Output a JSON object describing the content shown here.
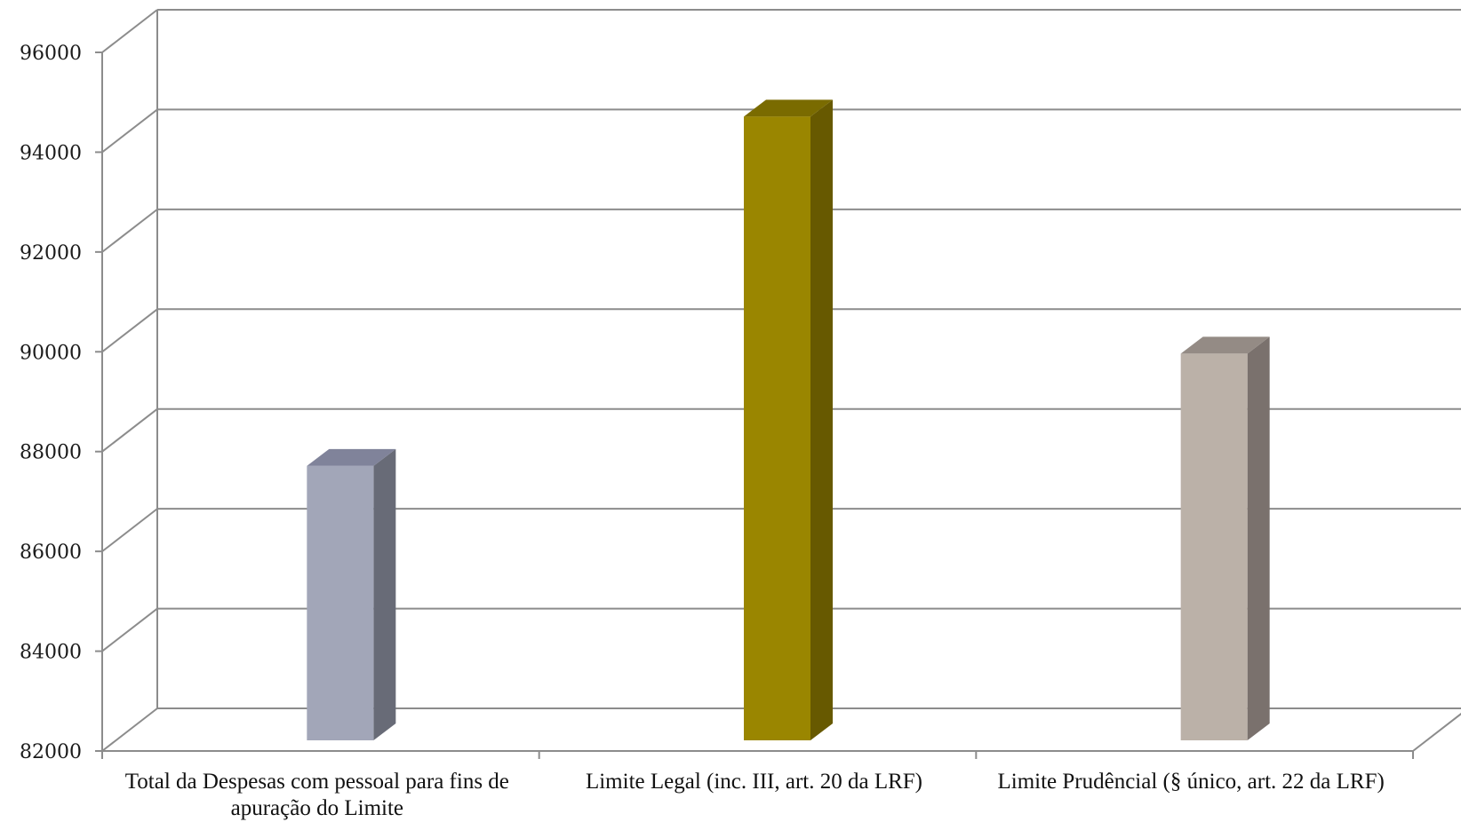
{
  "chart_data": {
    "type": "bar",
    "title": "",
    "xlabel": "",
    "ylabel": "",
    "categories": [
      "Total da Despesas com pessoal para fins de apuração do Limite",
      "Limite Legal (inc. III, art. 20 da LRF)",
      "Limite Prudêncial (§ único, art. 22 da LRF)"
    ],
    "values": [
      87500,
      94500,
      89750
    ],
    "ylim": [
      82000,
      96000
    ],
    "yticks": [
      82000,
      84000,
      86000,
      88000,
      90000,
      92000,
      94000,
      96000
    ],
    "ytick_labels": [
      "82000",
      "84000",
      "86000",
      "88000",
      "90000",
      "92000",
      "94000",
      "96000"
    ],
    "grid": true,
    "legend": "none",
    "three_d": true,
    "bar_colors": [
      {
        "front": "#a2a6b8",
        "side": "#686b77",
        "top": "#80839a"
      },
      {
        "front": "#9a8600",
        "side": "#675900",
        "top": "#7a6b00"
      },
      {
        "front": "#bbb1a8",
        "side": "#7a716d",
        "top": "#948b85"
      }
    ],
    "grid_color": "#8c8c8c"
  }
}
